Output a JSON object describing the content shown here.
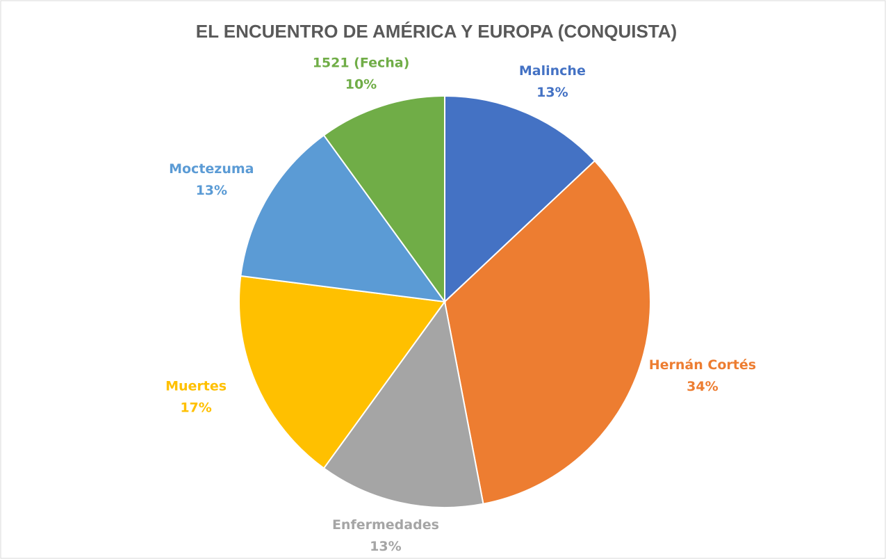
{
  "chart_data": {
    "type": "pie",
    "title": "EL ENCUENTRO DE AMÉRICA Y EUROPA (CONQUISTA)",
    "categories": [
      "Malinche",
      "Hernán Cortés",
      "Enfermedades",
      "Muertes",
      "Moctezuma",
      "1521 (Fecha)"
    ],
    "values": [
      13,
      34,
      13,
      17,
      13,
      10
    ],
    "value_labels": [
      "13%",
      "34%",
      "13%",
      "17%",
      "13%",
      "10%"
    ],
    "colors": [
      "#4472c4",
      "#ed7d31",
      "#a5a5a5",
      "#ffc000",
      "#5b9bd5",
      "#70ad47"
    ]
  }
}
